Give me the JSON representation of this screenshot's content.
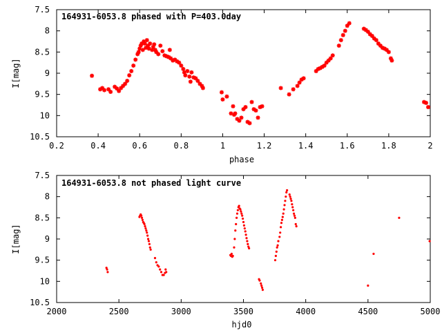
{
  "chart_data": [
    {
      "type": "scatter",
      "title": "164931-6053.8 phased with P=403.0day",
      "xlabel": "phase",
      "ylabel": "I[mag]",
      "xlim": [
        0.2,
        2.0
      ],
      "ylim": [
        7.5,
        10.5
      ],
      "y_inverted": true,
      "grid": false,
      "x_ticks": [
        "0.2",
        "0.4",
        "0.6",
        "0.8",
        "1",
        "1.2",
        "1.4",
        "1.6",
        "1.8",
        "2"
      ],
      "y_ticks": [
        "7.5",
        "8",
        "8.5",
        "9",
        "9.5",
        "10",
        "10.5"
      ],
      "marker": "star",
      "series": [
        {
          "color": "#ff0000",
          "points": [
            [
              0.37,
              9.06
            ],
            [
              0.41,
              9.38
            ],
            [
              0.42,
              9.35
            ],
            [
              0.43,
              9.4
            ],
            [
              0.45,
              9.38
            ],
            [
              0.46,
              9.44
            ],
            [
              0.48,
              9.32
            ],
            [
              0.49,
              9.36
            ],
            [
              0.5,
              9.42
            ],
            [
              0.51,
              9.35
            ],
            [
              0.52,
              9.3
            ],
            [
              0.53,
              9.25
            ],
            [
              0.54,
              9.18
            ],
            [
              0.55,
              9.05
            ],
            [
              0.56,
              8.95
            ],
            [
              0.57,
              8.82
            ],
            [
              0.58,
              8.68
            ],
            [
              0.59,
              8.55
            ],
            [
              0.595,
              8.5
            ],
            [
              0.6,
              8.42
            ],
            [
              0.605,
              8.35
            ],
            [
              0.61,
              8.3
            ],
            [
              0.615,
              8.45
            ],
            [
              0.62,
              8.25
            ],
            [
              0.625,
              8.3
            ],
            [
              0.63,
              8.4
            ],
            [
              0.635,
              8.22
            ],
            [
              0.64,
              8.35
            ],
            [
              0.645,
              8.42
            ],
            [
              0.65,
              8.3
            ],
            [
              0.66,
              8.45
            ],
            [
              0.665,
              8.38
            ],
            [
              0.67,
              8.32
            ],
            [
              0.675,
              8.45
            ],
            [
              0.68,
              8.5
            ],
            [
              0.69,
              8.55
            ],
            [
              0.7,
              8.35
            ],
            [
              0.71,
              8.48
            ],
            [
              0.72,
              8.58
            ],
            [
              0.73,
              8.6
            ],
            [
              0.74,
              8.62
            ],
            [
              0.745,
              8.45
            ],
            [
              0.75,
              8.65
            ],
            [
              0.76,
              8.7
            ],
            [
              0.77,
              8.68
            ],
            [
              0.78,
              8.72
            ],
            [
              0.79,
              8.75
            ],
            [
              0.8,
              8.82
            ],
            [
              0.81,
              8.9
            ],
            [
              0.815,
              8.98
            ],
            [
              0.82,
              9.05
            ],
            [
              0.83,
              8.95
            ],
            [
              0.84,
              9.08
            ],
            [
              0.845,
              9.2
            ],
            [
              0.85,
              8.98
            ],
            [
              0.86,
              9.1
            ],
            [
              0.87,
              9.12
            ],
            [
              0.88,
              9.18
            ],
            [
              0.89,
              9.25
            ],
            [
              0.9,
              9.3
            ],
            [
              0.905,
              9.35
            ],
            [
              0.995,
              9.45
            ],
            [
              1.0,
              9.62
            ],
            [
              1.02,
              9.55
            ],
            [
              1.04,
              9.95
            ],
            [
              1.05,
              9.78
            ],
            [
              1.055,
              9.98
            ],
            [
              1.06,
              9.95
            ],
            [
              1.07,
              10.08
            ],
            [
              1.08,
              10.12
            ],
            [
              1.09,
              10.05
            ],
            [
              1.1,
              9.85
            ],
            [
              1.11,
              9.8
            ],
            [
              1.12,
              10.15
            ],
            [
              1.13,
              10.18
            ],
            [
              1.14,
              9.68
            ],
            [
              1.15,
              9.85
            ],
            [
              1.16,
              9.88
            ],
            [
              1.17,
              10.05
            ],
            [
              1.18,
              9.8
            ],
            [
              1.19,
              9.78
            ],
            [
              1.28,
              9.35
            ],
            [
              1.32,
              9.5
            ],
            [
              1.34,
              9.38
            ],
            [
              1.36,
              9.3
            ],
            [
              1.37,
              9.22
            ],
            [
              1.38,
              9.15
            ],
            [
              1.39,
              9.12
            ],
            [
              1.45,
              8.95
            ],
            [
              1.46,
              8.9
            ],
            [
              1.47,
              8.88
            ],
            [
              1.48,
              8.85
            ],
            [
              1.49,
              8.82
            ],
            [
              1.5,
              8.75
            ],
            [
              1.51,
              8.7
            ],
            [
              1.52,
              8.65
            ],
            [
              1.53,
              8.58
            ],
            [
              1.56,
              8.35
            ],
            [
              1.57,
              8.22
            ],
            [
              1.58,
              8.1
            ],
            [
              1.59,
              8.0
            ],
            [
              1.6,
              7.88
            ],
            [
              1.61,
              7.82
            ],
            [
              1.68,
              7.95
            ],
            [
              1.69,
              7.98
            ],
            [
              1.7,
              8.02
            ],
            [
              1.71,
              8.08
            ],
            [
              1.72,
              8.12
            ],
            [
              1.73,
              8.18
            ],
            [
              1.74,
              8.22
            ],
            [
              1.75,
              8.3
            ],
            [
              1.76,
              8.35
            ],
            [
              1.77,
              8.4
            ],
            [
              1.78,
              8.42
            ],
            [
              1.79,
              8.45
            ],
            [
              1.8,
              8.5
            ],
            [
              1.81,
              8.65
            ],
            [
              1.815,
              8.7
            ],
            [
              1.97,
              9.68
            ],
            [
              1.98,
              9.7
            ],
            [
              1.99,
              9.8
            ]
          ]
        }
      ]
    },
    {
      "type": "scatter",
      "title": "164931-6053.8 not phased light curve",
      "xlabel": "hjd0",
      "ylabel": "I[mag]",
      "xlim": [
        2000,
        5000
      ],
      "ylim": [
        7.5,
        10.5
      ],
      "y_inverted": true,
      "grid": false,
      "x_ticks": [
        "2000",
        "2500",
        "3000",
        "3500",
        "4000",
        "4500",
        "5000"
      ],
      "y_ticks": [
        "7.5",
        "8",
        "8.5",
        "9",
        "9.5",
        "10",
        "10.5"
      ],
      "marker": "dot",
      "series": [
        {
          "color": "#ff0000",
          "points": [
            [
              2400,
              9.68
            ],
            [
              2405,
              9.72
            ],
            [
              2410,
              9.78
            ],
            [
              2665,
              8.48
            ],
            [
              2670,
              8.45
            ],
            [
              2675,
              8.42
            ],
            [
              2680,
              8.45
            ],
            [
              2685,
              8.5
            ],
            [
              2690,
              8.55
            ],
            [
              2695,
              8.6
            ],
            [
              2700,
              8.62
            ],
            [
              2705,
              8.65
            ],
            [
              2710,
              8.7
            ],
            [
              2715,
              8.75
            ],
            [
              2720,
              8.8
            ],
            [
              2725,
              8.85
            ],
            [
              2730,
              8.92
            ],
            [
              2735,
              9.0
            ],
            [
              2740,
              9.05
            ],
            [
              2745,
              9.12
            ],
            [
              2750,
              9.2
            ],
            [
              2755,
              9.25
            ],
            [
              2790,
              9.45
            ],
            [
              2800,
              9.55
            ],
            [
              2810,
              9.62
            ],
            [
              2820,
              9.65
            ],
            [
              2830,
              9.72
            ],
            [
              2840,
              9.78
            ],
            [
              2850,
              9.85
            ],
            [
              2860,
              9.85
            ],
            [
              2870,
              9.8
            ],
            [
              2875,
              9.72
            ],
            [
              2880,
              9.78
            ],
            [
              3395,
              9.38
            ],
            [
              3400,
              9.4
            ],
            [
              3405,
              9.35
            ],
            [
              3410,
              9.42
            ],
            [
              3415,
              9.4
            ],
            [
              3425,
              9.2
            ],
            [
              3430,
              9.0
            ],
            [
              3435,
              8.8
            ],
            [
              3440,
              8.65
            ],
            [
              3445,
              8.5
            ],
            [
              3450,
              8.4
            ],
            [
              3455,
              8.32
            ],
            [
              3460,
              8.25
            ],
            [
              3465,
              8.22
            ],
            [
              3470,
              8.28
            ],
            [
              3475,
              8.3
            ],
            [
              3480,
              8.35
            ],
            [
              3485,
              8.4
            ],
            [
              3490,
              8.45
            ],
            [
              3495,
              8.52
            ],
            [
              3500,
              8.6
            ],
            [
              3505,
              8.68
            ],
            [
              3510,
              8.75
            ],
            [
              3515,
              8.82
            ],
            [
              3520,
              8.9
            ],
            [
              3525,
              8.98
            ],
            [
              3530,
              9.05
            ],
            [
              3535,
              9.12
            ],
            [
              3540,
              9.18
            ],
            [
              3545,
              9.22
            ],
            [
              3625,
              9.95
            ],
            [
              3630,
              9.98
            ],
            [
              3640,
              10.05
            ],
            [
              3645,
              10.1
            ],
            [
              3650,
              10.15
            ],
            [
              3655,
              10.2
            ],
            [
              3755,
              9.5
            ],
            [
              3760,
              9.4
            ],
            [
              3765,
              9.3
            ],
            [
              3770,
              9.2
            ],
            [
              3775,
              9.15
            ],
            [
              3780,
              9.05
            ],
            [
              3790,
              8.95
            ],
            [
              3795,
              8.85
            ],
            [
              3800,
              8.72
            ],
            [
              3805,
              8.62
            ],
            [
              3810,
              8.55
            ],
            [
              3815,
              8.48
            ],
            [
              3820,
              8.4
            ],
            [
              3825,
              8.3
            ],
            [
              3830,
              8.2
            ],
            [
              3835,
              8.1
            ],
            [
              3840,
              8.0
            ],
            [
              3845,
              7.9
            ],
            [
              3850,
              7.85
            ],
            [
              3870,
              7.95
            ],
            [
              3875,
              8.0
            ],
            [
              3880,
              8.05
            ],
            [
              3885,
              8.1
            ],
            [
              3890,
              8.18
            ],
            [
              3895,
              8.25
            ],
            [
              3900,
              8.32
            ],
            [
              3905,
              8.4
            ],
            [
              3910,
              8.45
            ],
            [
              3915,
              8.5
            ],
            [
              3920,
              8.65
            ],
            [
              3925,
              8.7
            ],
            [
              4500,
              10.1
            ],
            [
              4545,
              9.35
            ],
            [
              4750,
              8.5
            ],
            [
              4995,
              9.05
            ]
          ]
        }
      ]
    }
  ]
}
